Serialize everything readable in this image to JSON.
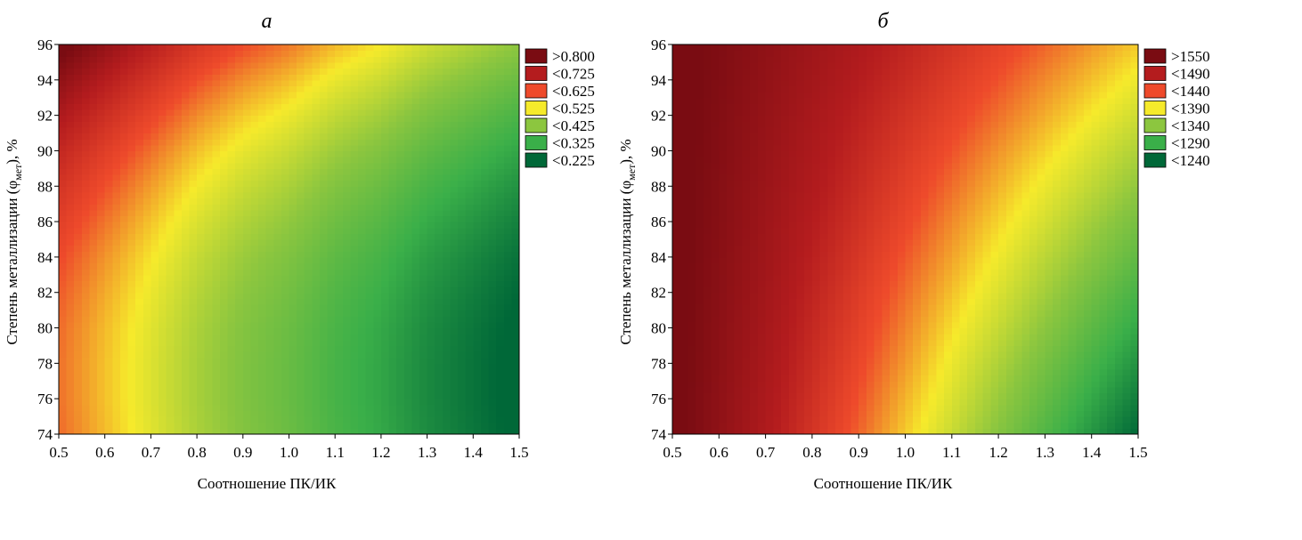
{
  "chart_data": [
    {
      "type": "contour",
      "title": "а",
      "xlabel": "Соотношение ПК/ИК",
      "ylabel": [
        "Степень металлизации (φ",
        "мет",
        "), %"
      ],
      "x": [
        0.5,
        0.6,
        0.7,
        0.8,
        0.9,
        1.0,
        1.1,
        1.2,
        1.3,
        1.4,
        1.5
      ],
      "y": [
        74,
        76,
        78,
        80,
        82,
        84,
        86,
        88,
        90,
        92,
        94,
        96
      ],
      "z": [
        [
          0.605,
          0.555,
          0.505,
          0.455,
          0.415,
          0.385,
          0.345,
          0.315,
          0.275,
          0.245,
          0.215
        ],
        [
          0.601,
          0.551,
          0.501,
          0.451,
          0.411,
          0.381,
          0.341,
          0.311,
          0.271,
          0.241,
          0.211
        ],
        [
          0.601,
          0.551,
          0.501,
          0.451,
          0.411,
          0.381,
          0.341,
          0.311,
          0.271,
          0.241,
          0.211
        ],
        [
          0.605,
          0.555,
          0.505,
          0.455,
          0.415,
          0.385,
          0.345,
          0.315,
          0.275,
          0.245,
          0.215
        ],
        [
          0.615,
          0.565,
          0.515,
          0.465,
          0.425,
          0.395,
          0.355,
          0.325,
          0.285,
          0.255,
          0.225
        ],
        [
          0.629,
          0.579,
          0.529,
          0.479,
          0.439,
          0.409,
          0.369,
          0.339,
          0.299,
          0.269,
          0.239
        ],
        [
          0.649,
          0.599,
          0.549,
          0.499,
          0.459,
          0.429,
          0.389,
          0.359,
          0.319,
          0.289,
          0.259
        ],
        [
          0.673,
          0.623,
          0.573,
          0.523,
          0.483,
          0.453,
          0.413,
          0.383,
          0.343,
          0.313,
          0.283
        ],
        [
          0.701,
          0.651,
          0.601,
          0.551,
          0.511,
          0.481,
          0.441,
          0.411,
          0.371,
          0.341,
          0.311
        ],
        [
          0.735,
          0.685,
          0.635,
          0.585,
          0.545,
          0.515,
          0.475,
          0.445,
          0.405,
          0.375,
          0.345
        ],
        [
          0.773,
          0.723,
          0.673,
          0.623,
          0.583,
          0.553,
          0.513,
          0.483,
          0.443,
          0.413,
          0.383
        ],
        [
          0.817,
          0.767,
          0.717,
          0.667,
          0.627,
          0.597,
          0.557,
          0.527,
          0.487,
          0.457,
          0.427
        ]
      ],
      "legend": [
        {
          "value": 0.8,
          "label": ">0.800",
          "color": "#7a0c12"
        },
        {
          "value": 0.725,
          "label": "<0.725",
          "color": "#b41c1e"
        },
        {
          "value": 0.625,
          "label": "<0.625",
          "color": "#ee4a2b"
        },
        {
          "value": 0.525,
          "label": "<0.525",
          "color": "#f6ea2b"
        },
        {
          "value": 0.425,
          "label": "<0.425",
          "color": "#8cc63f"
        },
        {
          "value": 0.325,
          "label": "<0.325",
          "color": "#3aaf49"
        },
        {
          "value": 0.225,
          "label": "<0.225",
          "color": "#006838"
        }
      ],
      "xlim": [
        0.5,
        1.5
      ],
      "ylim": [
        74,
        96
      ],
      "xticks": [
        0.5,
        0.6,
        0.7,
        0.8,
        0.9,
        {
          "value": 1,
          "label": "1.0"
        },
        1.1,
        1.2,
        1.3,
        1.4,
        1.5
      ],
      "yticks": [
        74,
        76,
        78,
        80,
        82,
        84,
        86,
        88,
        90,
        92,
        94,
        96
      ]
    },
    {
      "type": "contour",
      "title": "б",
      "xlabel": "Соотношение ПК/ИК",
      "ylabel": [
        "Степень металлизации (φ",
        "мет",
        "), %"
      ],
      "x": [
        0.5,
        0.6,
        0.7,
        0.8,
        0.9,
        1.0,
        1.1,
        1.2,
        1.3,
        1.4,
        1.5
      ],
      "y": [
        74,
        76,
        78,
        80,
        82,
        84,
        86,
        88,
        90,
        92,
        94,
        96
      ],
      "z": [
        [
          1560,
          1528,
          1496,
          1464,
          1432,
          1400,
          1368,
          1336,
          1304,
          1272,
          1240
        ],
        [
          1560,
          1529,
          1499,
          1468,
          1438,
          1407,
          1377,
          1346,
          1316,
          1285,
          1254
        ],
        [
          1560,
          1531,
          1502,
          1473,
          1444,
          1415,
          1385,
          1356,
          1327,
          1298,
          1269
        ],
        [
          1560,
          1532,
          1505,
          1477,
          1450,
          1422,
          1394,
          1367,
          1339,
          1311,
          1284
        ],
        [
          1560,
          1534,
          1508,
          1481,
          1455,
          1429,
          1403,
          1377,
          1351,
          1324,
          1298
        ],
        [
          1560,
          1535,
          1511,
          1486,
          1461,
          1436,
          1412,
          1387,
          1362,
          1338,
          1313
        ],
        [
          1560,
          1537,
          1513,
          1490,
          1467,
          1444,
          1420,
          1397,
          1374,
          1350,
          1327
        ],
        [
          1560,
          1538,
          1516,
          1495,
          1473,
          1451,
          1429,
          1407,
          1385,
          1364,
          1342
        ],
        [
          1560,
          1540,
          1519,
          1499,
          1478,
          1458,
          1438,
          1417,
          1397,
          1376,
          1356
        ],
        [
          1560,
          1541,
          1522,
          1503,
          1484,
          1465,
          1447,
          1428,
          1409,
          1390,
          1371
        ],
        [
          1560,
          1543,
          1525,
          1508,
          1490,
          1473,
          1455,
          1438,
          1420,
          1403,
          1385
        ],
        [
          1560,
          1544,
          1528,
          1512,
          1496,
          1480,
          1464,
          1448,
          1432,
          1416,
          1400
        ]
      ],
      "legend": [
        {
          "value": 1550,
          "label": ">1550",
          "color": "#7a0c12"
        },
        {
          "value": 1490,
          "label": "<1490",
          "color": "#b41c1e"
        },
        {
          "value": 1440,
          "label": "<1440",
          "color": "#ee4a2b"
        },
        {
          "value": 1390,
          "label": "<1390",
          "color": "#f6ea2b"
        },
        {
          "value": 1340,
          "label": "<1340",
          "color": "#8cc63f"
        },
        {
          "value": 1290,
          "label": "<1290",
          "color": "#3aaf49"
        },
        {
          "value": 1240,
          "label": "<1240",
          "color": "#006838"
        }
      ],
      "xlim": [
        0.5,
        1.5
      ],
      "ylim": [
        74,
        96
      ],
      "xticks": [
        0.5,
        0.6,
        0.7,
        0.8,
        0.9,
        {
          "value": 1,
          "label": "1.0"
        },
        1.1,
        1.2,
        1.3,
        1.4,
        1.5
      ],
      "yticks": [
        74,
        76,
        78,
        80,
        82,
        84,
        86,
        88,
        90,
        92,
        94,
        96
      ]
    }
  ]
}
